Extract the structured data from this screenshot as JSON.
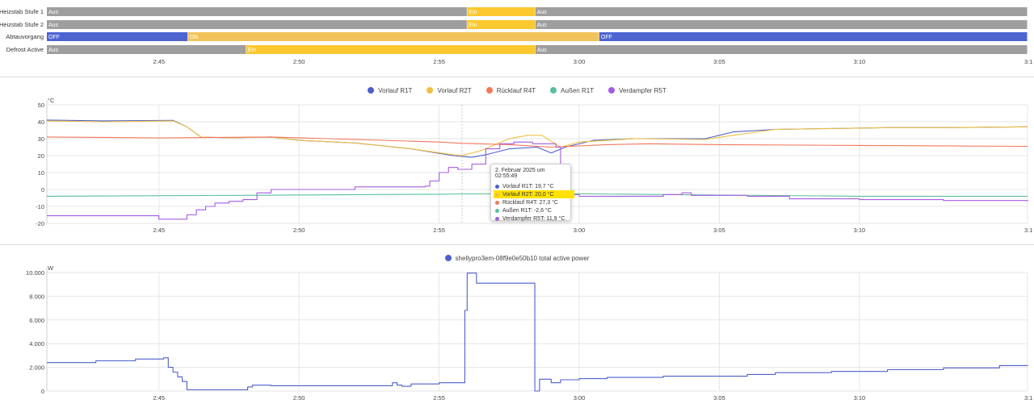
{
  "timeline": {
    "rows": [
      {
        "label": "Heizstab Stufe 1",
        "segments": [
          {
            "state": "Aus",
            "start": "2:41:00",
            "end": "2:56:00",
            "color": "#9e9e9e"
          },
          {
            "state": "Ein",
            "start": "2:56:00",
            "end": "2:58:26",
            "color": "#fbc92f"
          },
          {
            "state": "Aus",
            "start": "2:58:26",
            "end": "3:16:00",
            "color": "#9e9e9e"
          }
        ]
      },
      {
        "label": "Heizstab Stufe 2",
        "segments": [
          {
            "state": "Aus",
            "start": "2:41:00",
            "end": "2:56:00",
            "color": "#9e9e9e"
          },
          {
            "state": "Ein",
            "start": "2:56:00",
            "end": "2:58:26",
            "color": "#fbc92f"
          },
          {
            "state": "Aus",
            "start": "2:58:26",
            "end": "3:16:00",
            "color": "#9e9e9e"
          }
        ]
      },
      {
        "label": "Abtauvorgang",
        "segments": [
          {
            "state": "OFF",
            "start": "2:41:00",
            "end": "2:46:02",
            "color": "#4d64d1"
          },
          {
            "state": "ON",
            "start": "2:46:02",
            "end": "3:00:43",
            "color": "#f2c35a"
          },
          {
            "state": "OFF",
            "start": "3:00:43",
            "end": "3:16:00",
            "color": "#4d64d1"
          }
        ]
      },
      {
        "label": "Defrost Active",
        "segments": [
          {
            "state": "Aus",
            "start": "2:41:00",
            "end": "2:48:07",
            "color": "#9e9e9e"
          },
          {
            "state": "Ein",
            "start": "2:48:07",
            "end": "2:58:26",
            "color": "#fbc92f"
          },
          {
            "state": "Aus",
            "start": "2:58:26",
            "end": "3:16:00",
            "color": "#9e9e9e"
          }
        ]
      }
    ],
    "ticks": [
      "2:45",
      "2:50",
      "2:55",
      "3:00",
      "3:05",
      "3:10",
      "3:1"
    ]
  },
  "chart_data": [
    {
      "type": "line",
      "ylabel": "°C",
      "ylim": [
        -20,
        50
      ],
      "yticks": [
        "50",
        "40",
        "30",
        "20",
        "10",
        "0",
        "-10",
        "-20"
      ],
      "xticks": [
        "2:45",
        "2:50",
        "2:55",
        "3:00",
        "3:05",
        "3:10",
        "3:1"
      ],
      "x_range": [
        "2:41:00",
        "3:16:00"
      ],
      "grid": true,
      "legend": "top-center",
      "series": [
        {
          "name": "Vorlauf R1T",
          "color": "#4d5fcc",
          "step": false,
          "points": [
            [
              "2:41:00",
              41
            ],
            [
              "2:43:00",
              40.5
            ],
            [
              "2:45:30",
              40.8
            ],
            [
              "2:46:00",
              37
            ],
            [
              "2:46:30",
              31
            ],
            [
              "2:47:30",
              30.5
            ],
            [
              "2:49:00",
              31
            ],
            [
              "2:50:00",
              29
            ],
            [
              "2:52:00",
              27.5
            ],
            [
              "2:54:00",
              24
            ],
            [
              "2:55:30",
              20
            ],
            [
              "2:56:10",
              19
            ],
            [
              "2:56:40",
              20.5
            ],
            [
              "2:57:30",
              24
            ],
            [
              "2:58:30",
              25
            ],
            [
              "2:59:00",
              21.5
            ],
            [
              "2:59:30",
              25
            ],
            [
              "3:00:30",
              29
            ],
            [
              "3:02:00",
              30
            ],
            [
              "3:04:30",
              30
            ],
            [
              "3:05:30",
              34
            ],
            [
              "3:07:00",
              35.5
            ],
            [
              "3:09:00",
              36
            ],
            [
              "3:11:00",
              36.5
            ],
            [
              "3:13:00",
              36.5
            ],
            [
              "3:16:00",
              37
            ]
          ]
        },
        {
          "name": "Vorlauf R2T",
          "color": "#f0c040",
          "step": false,
          "points": [
            [
              "2:41:00",
              40.5
            ],
            [
              "2:43:00",
              40
            ],
            [
              "2:45:30",
              40.5
            ],
            [
              "2:46:00",
              37
            ],
            [
              "2:46:30",
              31
            ],
            [
              "2:47:30",
              30.5
            ],
            [
              "2:49:00",
              31
            ],
            [
              "2:50:00",
              29
            ],
            [
              "2:52:00",
              27.5
            ],
            [
              "2:54:00",
              24
            ],
            [
              "2:55:30",
              20.5
            ],
            [
              "2:55:49",
              20
            ],
            [
              "2:56:30",
              23
            ],
            [
              "2:57:30",
              30
            ],
            [
              "2:58:10",
              32
            ],
            [
              "2:58:40",
              32
            ],
            [
              "2:59:20",
              25
            ],
            [
              "3:00:00",
              28
            ],
            [
              "3:02:00",
              30
            ],
            [
              "3:04:30",
              29.5
            ],
            [
              "3:05:30",
              32
            ],
            [
              "3:07:00",
              35.5
            ],
            [
              "3:09:00",
              36
            ],
            [
              "3:11:00",
              36.5
            ],
            [
              "3:13:00",
              36.5
            ],
            [
              "3:16:00",
              37
            ]
          ]
        },
        {
          "name": "Rücklauf R4T",
          "color": "#f4765a",
          "step": false,
          "points": [
            [
              "2:41:00",
              31
            ],
            [
              "2:45:00",
              30.5
            ],
            [
              "2:49:00",
              31
            ],
            [
              "2:52:00",
              29.5
            ],
            [
              "2:55:00",
              28
            ],
            [
              "2:55:49",
              27.3
            ],
            [
              "2:57:30",
              26.5
            ],
            [
              "2:59:00",
              25
            ],
            [
              "3:01:00",
              26.5
            ],
            [
              "3:02:30",
              27
            ],
            [
              "3:05:00",
              26.5
            ],
            [
              "3:10:00",
              26
            ],
            [
              "3:16:00",
              25.5
            ]
          ]
        },
        {
          "name": "Außen R1T",
          "color": "#5bbf9a",
          "step": false,
          "points": [
            [
              "2:41:00",
              -4
            ],
            [
              "2:48:00",
              -3.5
            ],
            [
              "2:55:00",
              -2.8
            ],
            [
              "2:55:49",
              -2.6
            ],
            [
              "3:00:00",
              -2.5
            ],
            [
              "3:03:00",
              -3
            ],
            [
              "3:10:00",
              -4
            ],
            [
              "3:16:00",
              -4
            ]
          ]
        },
        {
          "name": "Verdampfer R5T",
          "color": "#a35be0",
          "step": true,
          "points": [
            [
              "2:41:00",
              -15.5
            ],
            [
              "2:45:00",
              -17.5
            ],
            [
              "2:45:30",
              -17.5
            ],
            [
              "2:46:00",
              -15
            ],
            [
              "2:46:20",
              -12
            ],
            [
              "2:46:40",
              -10
            ],
            [
              "2:47:00",
              -8
            ],
            [
              "2:47:30",
              -7
            ],
            [
              "2:48:00",
              -6
            ],
            [
              "2:48:30",
              -2
            ],
            [
              "2:49:00",
              0
            ],
            [
              "2:52:00",
              1.5
            ],
            [
              "2:54:30",
              2
            ],
            [
              "2:54:40",
              5
            ],
            [
              "2:55:00",
              10
            ],
            [
              "2:55:20",
              13
            ],
            [
              "2:55:40",
              11.9
            ],
            [
              "2:56:10",
              15
            ],
            [
              "2:56:40",
              24
            ],
            [
              "2:57:10",
              27
            ],
            [
              "2:57:40",
              28
            ],
            [
              "2:58:20",
              27
            ],
            [
              "2:59:10",
              25
            ],
            [
              "2:59:20",
              0
            ],
            [
              "2:59:40",
              -3
            ],
            [
              "3:00:00",
              -4
            ],
            [
              "3:03:00",
              -3
            ],
            [
              "3:03:40",
              -2
            ],
            [
              "3:04:00",
              -3.5
            ],
            [
              "3:06:00",
              -4
            ],
            [
              "3:07:30",
              -5.5
            ],
            [
              "3:10:00",
              -6
            ],
            [
              "3:13:00",
              -6.5
            ],
            [
              "3:16:00",
              -7
            ]
          ]
        }
      ],
      "tooltip": {
        "title": "2. Februar 2025 um 02:55:49",
        "rows": [
          {
            "text": "Vorlauf R1T: 19,7 °C",
            "color": "#4d5fcc",
            "highlight": false
          },
          {
            "text": "Vorlauf R2T: 20,0 °C",
            "color": "#f0c040",
            "highlight": true
          },
          {
            "text": "Rücklauf R4T: 27,3 °C",
            "color": "#f4765a",
            "highlight": false
          },
          {
            "text": "Außen R1T: -2,6 °C",
            "color": "#5bbf9a",
            "highlight": false
          },
          {
            "text": "Verdampfer R5T: 11,9 °C",
            "color": "#a35be0",
            "highlight": false
          }
        ]
      }
    },
    {
      "type": "line",
      "ylabel": "W",
      "ylim": [
        0,
        10000
      ],
      "yticks": [
        "10.000",
        "8.000",
        "6.000",
        "4.000",
        "2.000",
        "0"
      ],
      "xticks": [
        "2:45",
        "2:50",
        "2:55",
        "3:00",
        "3:05",
        "3:10",
        "3:1"
      ],
      "x_range": [
        "2:41:00",
        "3:16:00"
      ],
      "grid": true,
      "legend": "top-center",
      "series": [
        {
          "name": "shellypro3em-08f9e0e50b10 total active power",
          "color": "#4d5fcc",
          "step": true,
          "points": [
            [
              "2:41:00",
              2400
            ],
            [
              "2:42:40",
              2400
            ],
            [
              "2:42:45",
              2550
            ],
            [
              "2:44:00",
              2550
            ],
            [
              "2:44:10",
              2700
            ],
            [
              "2:45:10",
              2800
            ],
            [
              "2:45:20",
              2000
            ],
            [
              "2:45:30",
              1600
            ],
            [
              "2:45:40",
              1200
            ],
            [
              "2:45:50",
              800
            ],
            [
              "2:46:00",
              100
            ],
            [
              "2:48:00",
              100
            ],
            [
              "2:48:10",
              350
            ],
            [
              "2:48:20",
              500
            ],
            [
              "2:49:00",
              450
            ],
            [
              "2:50:00",
              450
            ],
            [
              "2:52:00",
              450
            ],
            [
              "2:53:10",
              450
            ],
            [
              "2:53:20",
              700
            ],
            [
              "2:53:30",
              500
            ],
            [
              "2:53:40",
              400
            ],
            [
              "2:54:00",
              600
            ],
            [
              "2:55:00",
              700
            ],
            [
              "2:55:50",
              700
            ],
            [
              "2:55:55",
              6800
            ],
            [
              "2:56:00",
              9950
            ],
            [
              "2:56:20",
              9100
            ],
            [
              "2:58:20",
              9100
            ],
            [
              "2:58:25",
              0
            ],
            [
              "2:58:35",
              1000
            ],
            [
              "2:59:00",
              700
            ],
            [
              "2:59:20",
              950
            ],
            [
              "3:00:00",
              1050
            ],
            [
              "3:01:00",
              1150
            ],
            [
              "3:03:00",
              1250
            ],
            [
              "3:06:00",
              1400
            ],
            [
              "3:07:00",
              1550
            ],
            [
              "3:09:00",
              1650
            ],
            [
              "3:11:00",
              1800
            ],
            [
              "3:13:00",
              1950
            ],
            [
              "3:15:00",
              2150
            ],
            [
              "3:16:00",
              2100
            ]
          ]
        }
      ]
    }
  ]
}
